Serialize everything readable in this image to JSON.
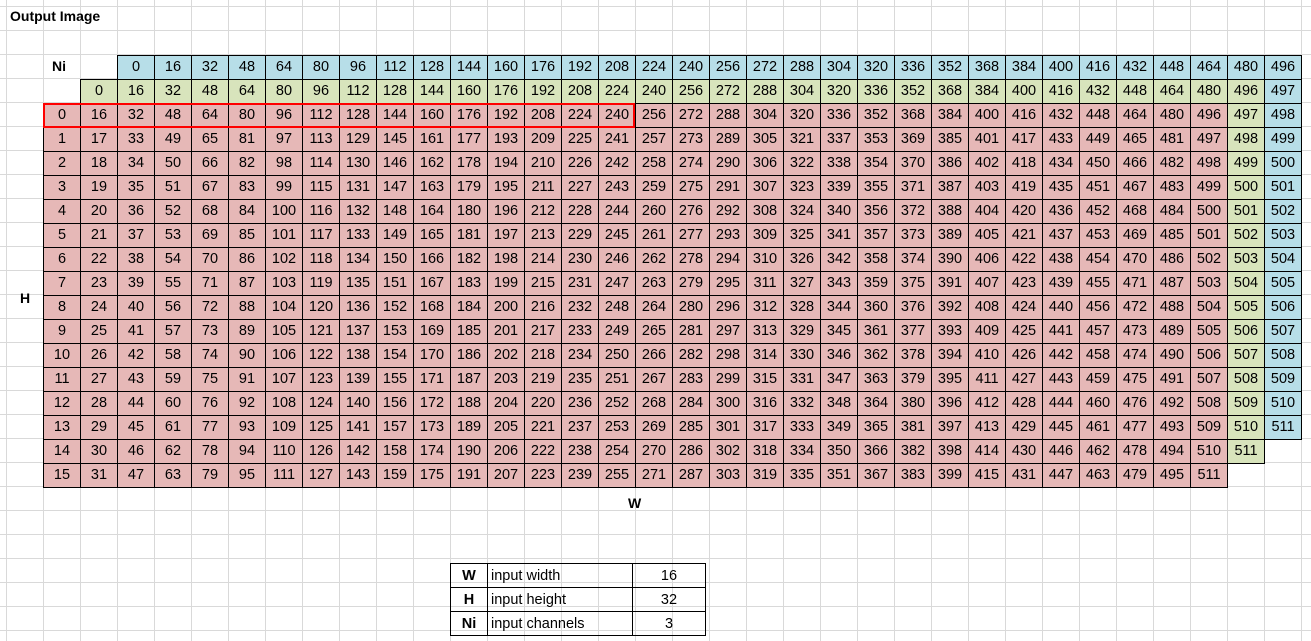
{
  "sheet": {
    "title": "Output Image",
    "ni_label": "Ni",
    "h_label": "H",
    "w_label": "W"
  },
  "colors": {
    "blue": "#b7dee8",
    "yellow": "#d8e4bc",
    "red": "#e6b8b7",
    "highlight_border": "#ff0000",
    "gridline": "#d9d9d9"
  },
  "table": {
    "header_row_1": [
      "0",
      "16",
      "32",
      "48",
      "64",
      "80",
      "96",
      "112",
      "128",
      "144",
      "160",
      "176",
      "192",
      "208",
      "224",
      "240",
      "256",
      "272",
      "288",
      "304",
      "320",
      "336",
      "352",
      "368",
      "384",
      "400",
      "416",
      "432",
      "448",
      "464",
      "480",
      "496"
    ],
    "header_row_2": [
      "0",
      "16",
      "32",
      "48",
      "64",
      "80",
      "96",
      "112",
      "128",
      "144",
      "160",
      "176",
      "192",
      "208",
      "224",
      "240",
      "256",
      "272",
      "288",
      "304",
      "320",
      "336",
      "352",
      "368",
      "384",
      "400",
      "416",
      "432",
      "448",
      "464",
      "480",
      "496",
      "497"
    ],
    "body_rows": [
      [
        "0",
        "16",
        "32",
        "48",
        "64",
        "80",
        "96",
        "112",
        "128",
        "144",
        "160",
        "176",
        "192",
        "208",
        "224",
        "240",
        "256",
        "272",
        "288",
        "304",
        "320",
        "336",
        "352",
        "368",
        "384",
        "400",
        "416",
        "432",
        "448",
        "464",
        "480",
        "496",
        "497",
        "498"
      ],
      [
        "1",
        "17",
        "33",
        "49",
        "65",
        "81",
        "97",
        "113",
        "129",
        "145",
        "161",
        "177",
        "193",
        "209",
        "225",
        "241",
        "257",
        "273",
        "289",
        "305",
        "321",
        "337",
        "353",
        "369",
        "385",
        "401",
        "417",
        "433",
        "449",
        "465",
        "481",
        "497",
        "498",
        "499"
      ],
      [
        "2",
        "18",
        "34",
        "50",
        "66",
        "82",
        "98",
        "114",
        "130",
        "146",
        "162",
        "178",
        "194",
        "210",
        "226",
        "242",
        "258",
        "274",
        "290",
        "306",
        "322",
        "338",
        "354",
        "370",
        "386",
        "402",
        "418",
        "434",
        "450",
        "466",
        "482",
        "498",
        "499",
        "500"
      ],
      [
        "3",
        "19",
        "35",
        "51",
        "67",
        "83",
        "99",
        "115",
        "131",
        "147",
        "163",
        "179",
        "195",
        "211",
        "227",
        "243",
        "259",
        "275",
        "291",
        "307",
        "323",
        "339",
        "355",
        "371",
        "387",
        "403",
        "419",
        "435",
        "451",
        "467",
        "483",
        "499",
        "500",
        "501"
      ],
      [
        "4",
        "20",
        "36",
        "52",
        "68",
        "84",
        "100",
        "116",
        "132",
        "148",
        "164",
        "180",
        "196",
        "212",
        "228",
        "244",
        "260",
        "276",
        "292",
        "308",
        "324",
        "340",
        "356",
        "372",
        "388",
        "404",
        "420",
        "436",
        "452",
        "468",
        "484",
        "500",
        "501",
        "502"
      ],
      [
        "5",
        "21",
        "37",
        "53",
        "69",
        "85",
        "101",
        "117",
        "133",
        "149",
        "165",
        "181",
        "197",
        "213",
        "229",
        "245",
        "261",
        "277",
        "293",
        "309",
        "325",
        "341",
        "357",
        "373",
        "389",
        "405",
        "421",
        "437",
        "453",
        "469",
        "485",
        "501",
        "502",
        "503"
      ],
      [
        "6",
        "22",
        "38",
        "54",
        "70",
        "86",
        "102",
        "118",
        "134",
        "150",
        "166",
        "182",
        "198",
        "214",
        "230",
        "246",
        "262",
        "278",
        "294",
        "310",
        "326",
        "342",
        "358",
        "374",
        "390",
        "406",
        "422",
        "438",
        "454",
        "470",
        "486",
        "502",
        "503",
        "504"
      ],
      [
        "7",
        "23",
        "39",
        "55",
        "71",
        "87",
        "103",
        "119",
        "135",
        "151",
        "167",
        "183",
        "199",
        "215",
        "231",
        "247",
        "263",
        "279",
        "295",
        "311",
        "327",
        "343",
        "359",
        "375",
        "391",
        "407",
        "423",
        "439",
        "455",
        "471",
        "487",
        "503",
        "504",
        "505"
      ],
      [
        "8",
        "24",
        "40",
        "56",
        "72",
        "88",
        "104",
        "120",
        "136",
        "152",
        "168",
        "184",
        "200",
        "216",
        "232",
        "248",
        "264",
        "280",
        "296",
        "312",
        "328",
        "344",
        "360",
        "376",
        "392",
        "408",
        "424",
        "440",
        "456",
        "472",
        "488",
        "504",
        "505",
        "506"
      ],
      [
        "9",
        "25",
        "41",
        "57",
        "73",
        "89",
        "105",
        "121",
        "137",
        "153",
        "169",
        "185",
        "201",
        "217",
        "233",
        "249",
        "265",
        "281",
        "297",
        "313",
        "329",
        "345",
        "361",
        "377",
        "393",
        "409",
        "425",
        "441",
        "457",
        "473",
        "489",
        "505",
        "506",
        "507"
      ],
      [
        "10",
        "26",
        "42",
        "58",
        "74",
        "90",
        "106",
        "122",
        "138",
        "154",
        "170",
        "186",
        "202",
        "218",
        "234",
        "250",
        "266",
        "282",
        "298",
        "314",
        "330",
        "346",
        "362",
        "378",
        "394",
        "410",
        "426",
        "442",
        "458",
        "474",
        "490",
        "506",
        "507",
        "508"
      ],
      [
        "11",
        "27",
        "43",
        "59",
        "75",
        "91",
        "107",
        "123",
        "139",
        "155",
        "171",
        "187",
        "203",
        "219",
        "235",
        "251",
        "267",
        "283",
        "299",
        "315",
        "331",
        "347",
        "363",
        "379",
        "395",
        "411",
        "427",
        "443",
        "459",
        "475",
        "491",
        "507",
        "508",
        "509"
      ],
      [
        "12",
        "28",
        "44",
        "60",
        "76",
        "92",
        "108",
        "124",
        "140",
        "156",
        "172",
        "188",
        "204",
        "220",
        "236",
        "252",
        "268",
        "284",
        "300",
        "316",
        "332",
        "348",
        "364",
        "380",
        "396",
        "412",
        "428",
        "444",
        "460",
        "476",
        "492",
        "508",
        "509",
        "510"
      ],
      [
        "13",
        "29",
        "45",
        "61",
        "77",
        "93",
        "109",
        "125",
        "141",
        "157",
        "173",
        "189",
        "205",
        "221",
        "237",
        "253",
        "269",
        "285",
        "301",
        "317",
        "333",
        "349",
        "365",
        "381",
        "397",
        "413",
        "429",
        "445",
        "461",
        "477",
        "493",
        "509",
        "510",
        "511"
      ],
      [
        "14",
        "30",
        "46",
        "62",
        "78",
        "94",
        "110",
        "126",
        "142",
        "158",
        "174",
        "190",
        "206",
        "222",
        "238",
        "254",
        "270",
        "286",
        "302",
        "318",
        "334",
        "350",
        "366",
        "382",
        "398",
        "414",
        "430",
        "446",
        "462",
        "478",
        "494",
        "510",
        "511"
      ],
      [
        "15",
        "31",
        "47",
        "63",
        "79",
        "95",
        "111",
        "127",
        "143",
        "159",
        "175",
        "191",
        "207",
        "223",
        "239",
        "255",
        "271",
        "287",
        "303",
        "319",
        "335",
        "351",
        "367",
        "383",
        "399",
        "415",
        "431",
        "447",
        "463",
        "479",
        "495",
        "511"
      ]
    ]
  },
  "params": [
    {
      "key": "W",
      "desc": "input width",
      "value": "16"
    },
    {
      "key": "H",
      "desc": "input height",
      "value": "32"
    },
    {
      "key": "Ni",
      "desc": "input channels",
      "value": "3"
    }
  ]
}
